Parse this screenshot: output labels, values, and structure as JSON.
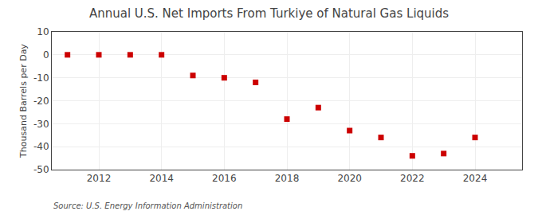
{
  "chart_data": {
    "type": "scatter",
    "title": "Annual U.S. Net Imports From Turkiye of Natural Gas Liquids",
    "ylabel": "Thousand Barrels per Day",
    "annotations": [
      "Source: U.S. Energy Information Administration"
    ],
    "x": [
      2011,
      2012,
      2013,
      2014,
      2015,
      2016,
      2017,
      2018,
      2019,
      2020,
      2021,
      2022,
      2023,
      2024
    ],
    "values": [
      0,
      0,
      0,
      0,
      -9,
      -10,
      -12,
      -28,
      -23,
      -33,
      -36,
      -44,
      -43,
      -36
    ],
    "xlim": [
      2010.5,
      2025.5
    ],
    "ylim": [
      -50,
      10
    ],
    "xticks": [
      2012,
      2014,
      2016,
      2018,
      2020,
      2022,
      2024
    ],
    "yticks": [
      -50,
      -40,
      -30,
      -20,
      -10,
      0,
      10
    ],
    "color": "#cc0000",
    "marker": "square",
    "grid": true
  }
}
